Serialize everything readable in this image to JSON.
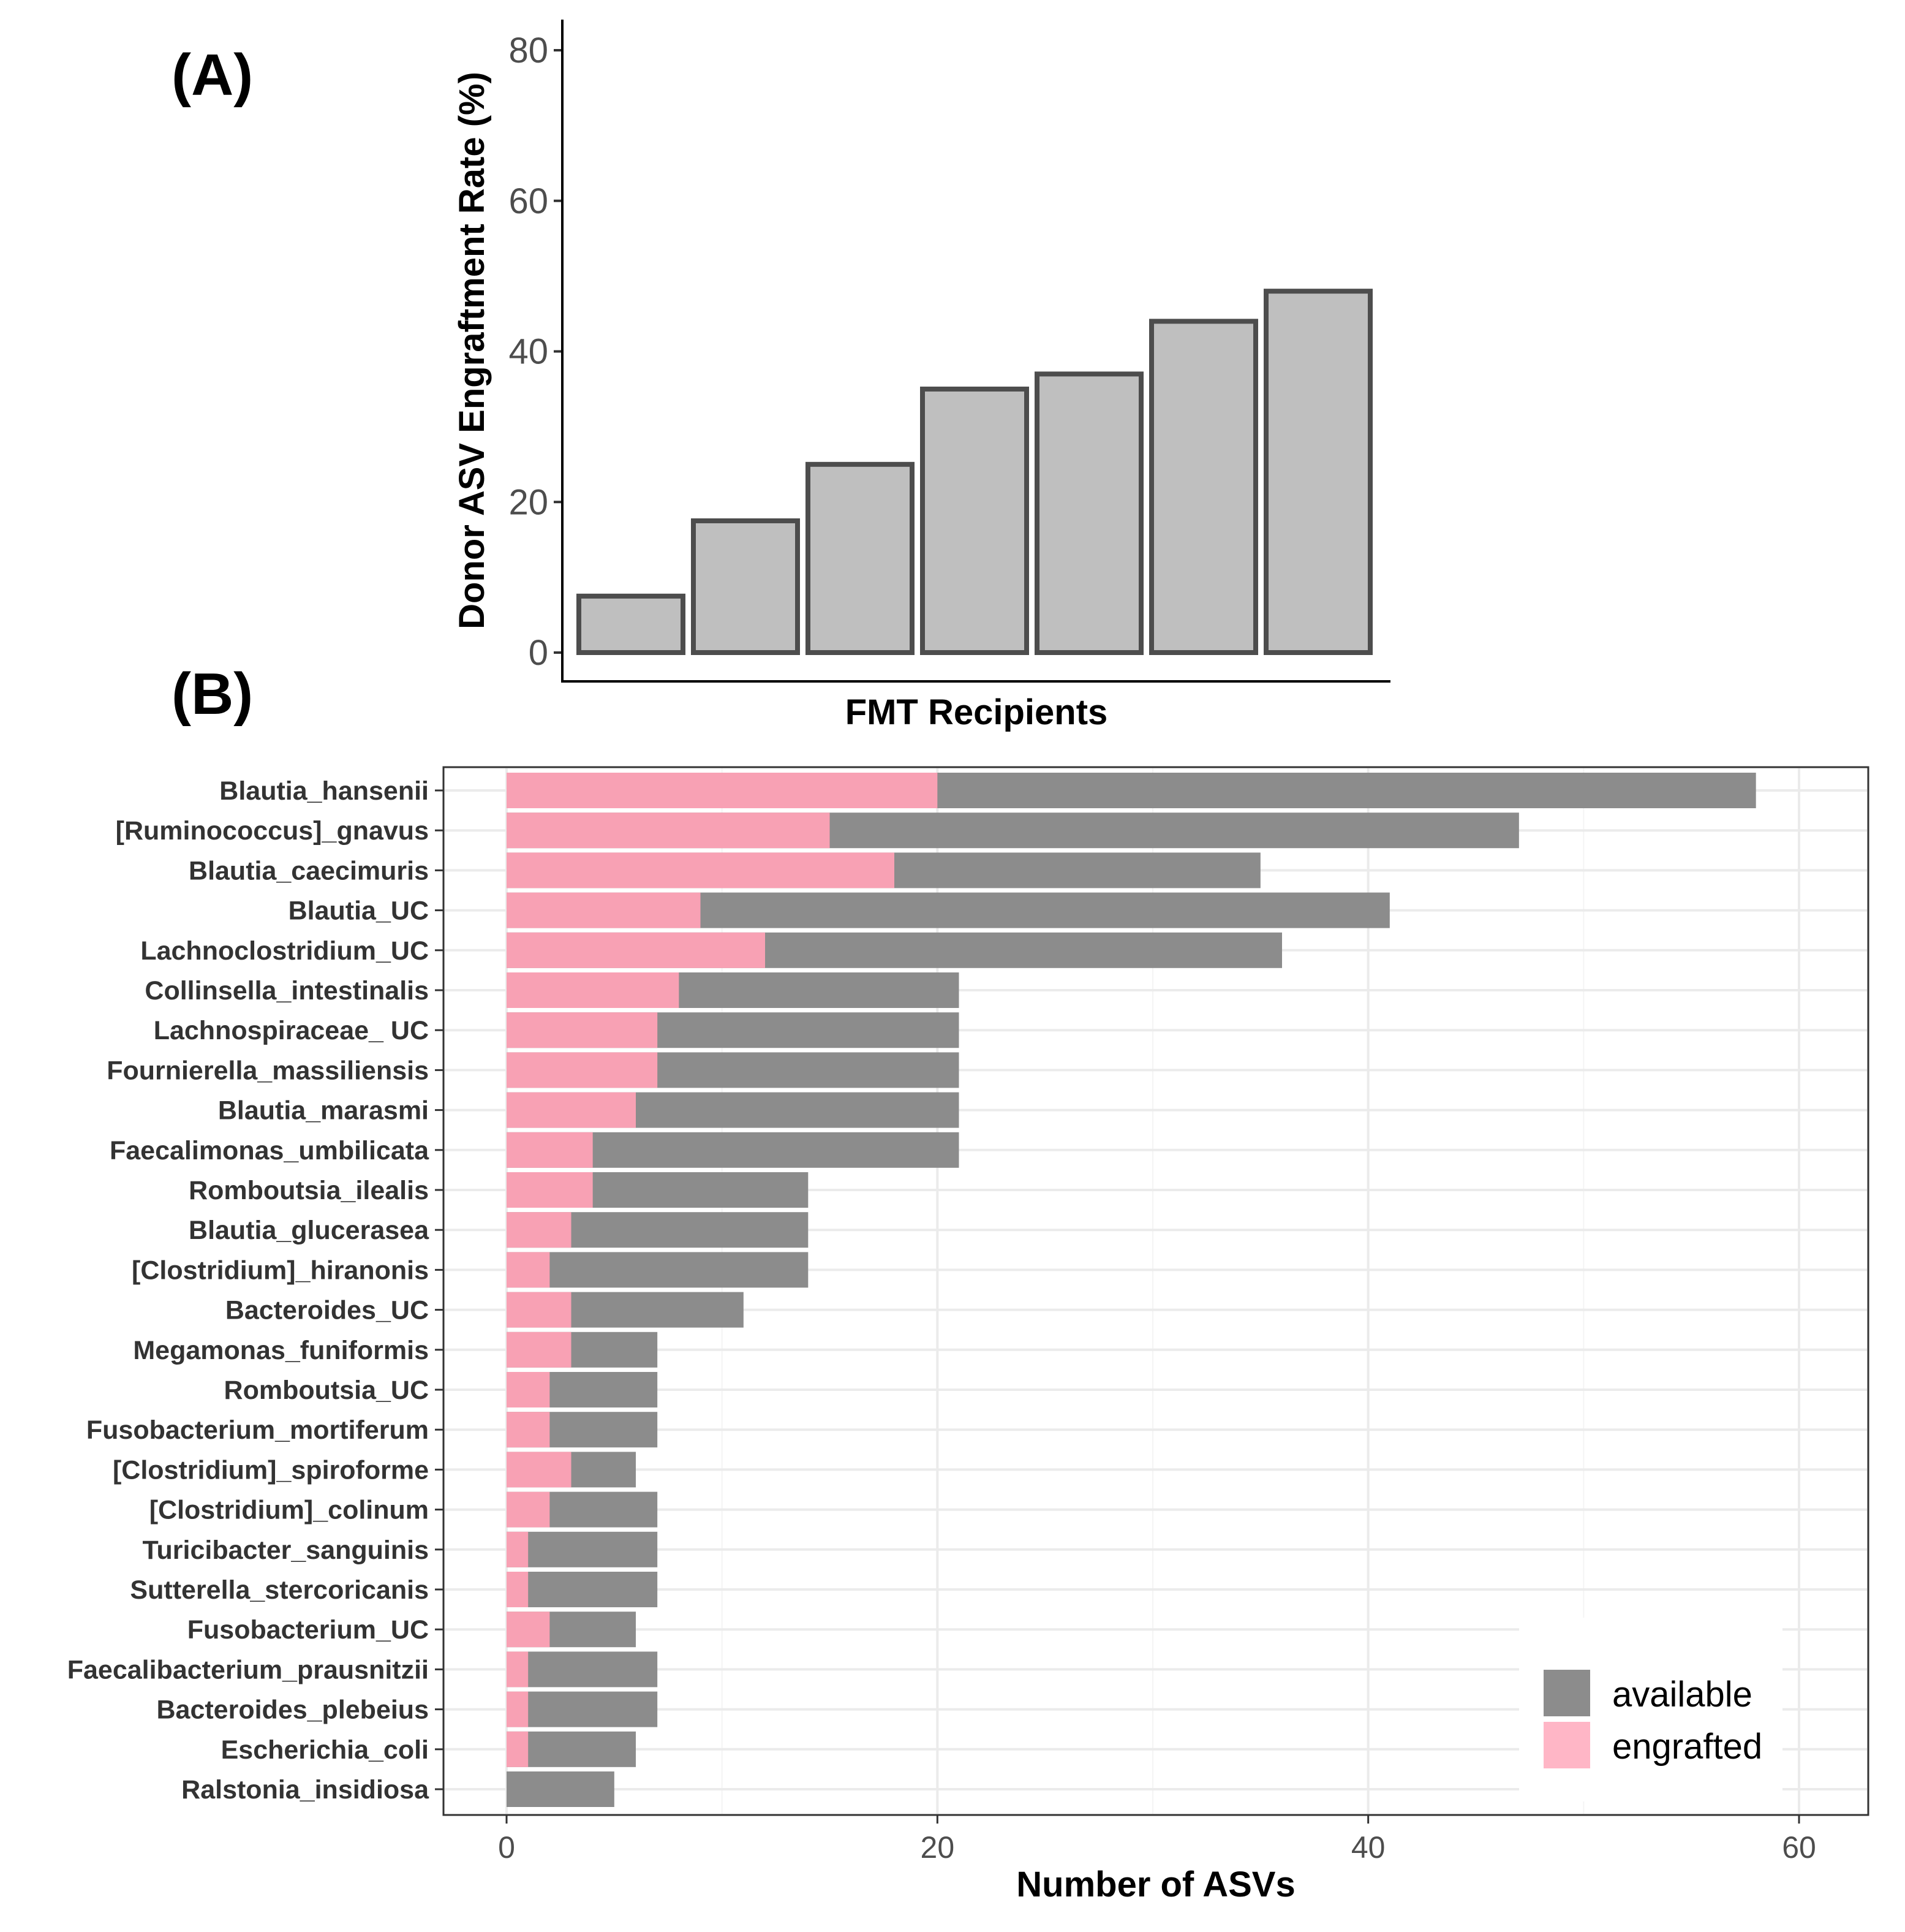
{
  "chart_data": [
    {
      "panel": "(A)",
      "type": "bar",
      "title": "",
      "xlabel": "FMT Recipients",
      "ylabel": "Donor ASV Engraftment Rate (%)",
      "categories": [
        "",
        "",
        "",
        "",
        "",
        "",
        ""
      ],
      "values": [
        7.5,
        17.5,
        25,
        35,
        37,
        44,
        48
      ],
      "ylim": [
        0,
        80
      ],
      "yticks": [
        "0",
        "20",
        "40",
        "60",
        "80"
      ],
      "bar_fill": "#bfbfbf",
      "bar_stroke": "#4d4d4d",
      "grid": false
    },
    {
      "panel": "(B)",
      "type": "bar",
      "orientation": "horizontal",
      "title": "",
      "xlabel": "Number of ASVs",
      "ylabel": "",
      "categories": [
        "Blautia_hansenii",
        "[Ruminococcus]_gnavus",
        "Blautia_caecimuris",
        "Blautia_UC",
        "Lachnoclostridium_UC",
        "Collinsella_intestinalis",
        "Lachnospiraceae_ UC",
        "Fournierella_massiliensis",
        "Blautia_marasmi",
        "Faecalimonas_umbilicata",
        "Romboutsia_ilealis",
        "Blautia_glucerasea",
        "[Clostridium]_hiranonis",
        "Bacteroides_UC",
        "Megamonas_funiformis",
        "Romboutsia_UC",
        "Fusobacterium_mortiferum",
        "[Clostridium]_spiroforme",
        "[Clostridium]_colinum",
        "Turicibacter_sanguinis",
        "Sutterella_stercoricanis",
        "Fusobacterium_UC",
        "Faecalibacterium_prausnitzii",
        "Bacteroides_plebeius",
        "Escherichia_coli",
        "Ralstonia_insidiosa"
      ],
      "series": [
        {
          "name": "available",
          "color": "#8c8c8c",
          "values": [
            58,
            47,
            35,
            41,
            36,
            21,
            21,
            21,
            21,
            21,
            14,
            14,
            14,
            11,
            7,
            7,
            7,
            6,
            7,
            7,
            7,
            6,
            7,
            7,
            6,
            5
          ]
        },
        {
          "name": "engrafted",
          "color": "#f8a1b4",
          "values": [
            20,
            15,
            18,
            9,
            12,
            8,
            7,
            7,
            6,
            4,
            4,
            3,
            2,
            3,
            3,
            2,
            2,
            3,
            2,
            1,
            1,
            2,
            1,
            1,
            1,
            0
          ]
        }
      ],
      "xlim": [
        0,
        60
      ],
      "xticks": [
        "0",
        "20",
        "40",
        "60"
      ],
      "legend": {
        "position": "bottom-right",
        "entries": [
          "available",
          "engrafted"
        ],
        "swatch_colors": [
          "#8c8c8c",
          "#ffb6c6"
        ]
      },
      "grid": true
    }
  ]
}
